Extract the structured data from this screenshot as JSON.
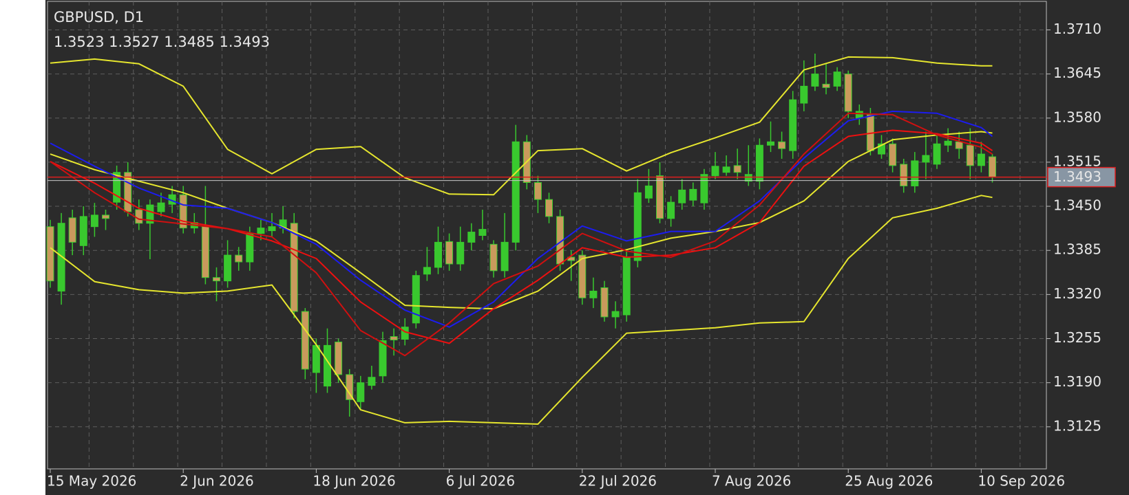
{
  "chart_data": {
    "type": "candlestick",
    "title": "GBPUSD, D1",
    "subtitle": "1.3523 1.3527 1.3485 1.3493",
    "categories": [
      "15 May 2026",
      null,
      null,
      null,
      null,
      null,
      null,
      null,
      null,
      null,
      null,
      null,
      "2 Jun 2026",
      null,
      null,
      null,
      null,
      null,
      null,
      null,
      null,
      null,
      null,
      null,
      "18 Jun 2026",
      null,
      null,
      null,
      null,
      null,
      null,
      null,
      null,
      null,
      null,
      null,
      "6 Jul 2026",
      null,
      null,
      null,
      null,
      null,
      null,
      null,
      null,
      null,
      null,
      null,
      "22 Jul 2026",
      null,
      null,
      null,
      null,
      null,
      null,
      null,
      null,
      null,
      null,
      null,
      "7 Aug 2026",
      null,
      null,
      null,
      null,
      null,
      null,
      null,
      null,
      null,
      null,
      null,
      "25 Aug 2026",
      null,
      null,
      null,
      null,
      null,
      null,
      null,
      null,
      null,
      null,
      null,
      "10 Sep 2026",
      null
    ],
    "open": [
      1.342,
      1.3325,
      1.3433,
      1.3392,
      1.342,
      1.3437,
      1.3456,
      1.35,
      1.3445,
      1.3425,
      1.3442,
      1.3453,
      1.3467,
      1.3418,
      1.342,
      1.3345,
      1.334,
      1.3378,
      1.3368,
      1.341,
      1.3414,
      1.3418,
      1.3425,
      1.3295,
      1.3205,
      1.3185,
      1.325,
      1.3202,
      1.3162,
      1.3186,
      1.32,
      1.3258,
      1.3254,
      1.3278,
      1.335,
      1.336,
      1.3398,
      1.3365,
      1.3397,
      1.3407,
      1.3394,
      1.3355,
      1.3397,
      1.3545,
      1.3485,
      1.346,
      1.3435,
      1.3375,
      1.3378,
      1.3315,
      1.333,
      1.3287,
      1.329,
      1.337,
      1.3462,
      1.3495,
      1.3432,
      1.3455,
      1.3459,
      1.3455,
      1.3495,
      1.35,
      1.351,
      1.3487,
      1.3487,
      1.354,
      1.3545,
      1.3532,
      1.3602,
      1.3627,
      1.363,
      1.3627,
      1.3645,
      1.358,
      1.3585,
      1.3527,
      1.3542,
      1.3512,
      1.348,
      1.3515,
      1.3512,
      1.354,
      1.3545,
      1.354,
      1.351,
      1.3523
    ],
    "high": [
      1.343,
      1.344,
      1.3445,
      1.345,
      1.3455,
      1.3445,
      1.351,
      1.3515,
      1.346,
      1.346,
      1.347,
      1.348,
      1.348,
      1.344,
      1.348,
      1.336,
      1.34,
      1.339,
      1.342,
      1.343,
      1.344,
      1.345,
      1.344,
      1.33,
      1.3255,
      1.327,
      1.3255,
      1.321,
      1.32,
      1.3215,
      1.3265,
      1.327,
      1.3285,
      1.3355,
      1.339,
      1.342,
      1.341,
      1.342,
      1.3425,
      1.3445,
      1.34,
      1.344,
      1.357,
      1.3555,
      1.3495,
      1.347,
      1.3445,
      1.3385,
      1.3385,
      1.3345,
      1.334,
      1.331,
      1.3385,
      1.349,
      1.3505,
      1.3515,
      1.3465,
      1.349,
      1.3485,
      1.3505,
      1.353,
      1.3525,
      1.3535,
      1.354,
      1.355,
      1.3575,
      1.356,
      1.362,
      1.3665,
      1.3675,
      1.366,
      1.3655,
      1.365,
      1.36,
      1.3595,
      1.3555,
      1.355,
      1.352,
      1.353,
      1.356,
      1.3555,
      1.3565,
      1.356,
      1.3565,
      1.3545,
      1.3527
    ],
    "low": [
      1.333,
      1.3305,
      1.3378,
      1.3378,
      1.3405,
      1.3415,
      1.3445,
      1.3435,
      1.3415,
      1.3372,
      1.3435,
      1.344,
      1.341,
      1.341,
      1.3335,
      1.331,
      1.333,
      1.3355,
      1.3355,
      1.34,
      1.3405,
      1.341,
      1.3285,
      1.3195,
      1.3175,
      1.3175,
      1.319,
      1.314,
      1.315,
      1.318,
      1.319,
      1.323,
      1.3245,
      1.327,
      1.334,
      1.335,
      1.3355,
      1.3355,
      1.3385,
      1.34,
      1.3345,
      1.3345,
      1.3385,
      1.3475,
      1.344,
      1.3425,
      1.3355,
      1.334,
      1.3305,
      1.33,
      1.328,
      1.327,
      1.328,
      1.336,
      1.3455,
      1.3425,
      1.342,
      1.3445,
      1.345,
      1.3445,
      1.349,
      1.3495,
      1.349,
      1.348,
      1.3475,
      1.353,
      1.352,
      1.352,
      1.359,
      1.362,
      1.3615,
      1.362,
      1.358,
      1.357,
      1.3525,
      1.352,
      1.35,
      1.347,
      1.347,
      1.349,
      1.3505,
      1.353,
      1.352,
      1.349,
      1.35,
      1.3485
    ],
    "close": [
      1.334,
      1.3425,
      1.3397,
      1.3435,
      1.3437,
      1.3432,
      1.35,
      1.3442,
      1.3425,
      1.3452,
      1.3455,
      1.3467,
      1.3418,
      1.3426,
      1.3345,
      1.334,
      1.3378,
      1.3368,
      1.341,
      1.3418,
      1.342,
      1.343,
      1.3295,
      1.321,
      1.3245,
      1.3245,
      1.3202,
      1.3165,
      1.319,
      1.3198,
      1.3252,
      1.3253,
      1.3272,
      1.3348,
      1.336,
      1.3397,
      1.3365,
      1.3397,
      1.3412,
      1.3416,
      1.3355,
      1.3397,
      1.3545,
      1.3485,
      1.346,
      1.3435,
      1.3365,
      1.337,
      1.3315,
      1.3325,
      1.3287,
      1.3295,
      1.3375,
      1.347,
      1.348,
      1.3432,
      1.3456,
      1.3474,
      1.3475,
      1.3497,
      1.3509,
      1.3508,
      1.35,
      1.3497,
      1.354,
      1.3545,
      1.3535,
      1.3607,
      1.3627,
      1.3645,
      1.3625,
      1.3648,
      1.359,
      1.359,
      1.3532,
      1.3542,
      1.351,
      1.348,
      1.3517,
      1.3525,
      1.3542,
      1.3546,
      1.3535,
      1.351,
      1.3527,
      1.3493
    ],
    "up_color": "#39c92e",
    "down_color": "#c99a5c",
    "wick_color": "#39c92e",
    "ylim": [
      1.3063,
      1.3752
    ],
    "yticks": [
      1.3125,
      {
        "value": 1.319,
        "label": "1.3190"
      },
      1.3255,
      {
        "value": 1.332,
        "label": "1.3320"
      },
      1.3385,
      {
        "value": 1.345,
        "label": "1.3450"
      },
      1.3515,
      {
        "value": 1.358,
        "label": "1.3580"
      },
      1.3645,
      {
        "value": 1.371,
        "label": "1.3710"
      }
    ],
    "grid": true,
    "last_price": 1.3493,
    "last_price_color": "#e01e1e",
    "indicators": [
      {
        "color": "#e6e62e",
        "x": [
          0,
          4,
          8,
          12,
          16,
          20,
          24,
          28,
          32,
          36,
          40,
          44,
          48,
          52,
          56,
          60,
          64,
          68,
          72,
          76,
          80,
          84,
          85
        ],
        "values": [
          1.3661,
          1.3667,
          1.366,
          1.3627,
          1.3534,
          1.3498,
          1.3534,
          1.3538,
          1.3492,
          1.3468,
          1.3467,
          1.3532,
          1.3535,
          1.3502,
          1.3529,
          1.3551,
          1.3574,
          1.3651,
          1.367,
          1.3669,
          1.3661,
          1.3657,
          1.3657
        ]
      },
      {
        "color": "#e6e62e",
        "x": [
          0,
          4,
          8,
          12,
          16,
          20,
          24,
          28,
          32,
          36,
          40,
          44,
          48,
          52,
          56,
          60,
          64,
          68,
          72,
          76,
          80,
          84,
          85
        ],
        "values": [
          1.3527,
          1.3504,
          1.3487,
          1.347,
          1.3447,
          1.3426,
          1.3399,
          1.3352,
          1.3304,
          1.3301,
          1.3299,
          1.3325,
          1.3373,
          1.3386,
          1.3403,
          1.3413,
          1.3426,
          1.3458,
          1.3516,
          1.3548,
          1.3555,
          1.356,
          1.3558
        ]
      },
      {
        "color": "#e6e62e",
        "x": [
          0,
          4,
          8,
          12,
          16,
          20,
          24,
          28,
          32,
          36,
          40,
          44,
          48,
          52,
          56,
          60,
          64,
          68,
          72,
          76,
          80,
          84,
          85
        ],
        "values": [
          1.3389,
          1.3339,
          1.3327,
          1.3322,
          1.3325,
          1.3334,
          1.3246,
          1.315,
          1.3131,
          1.3133,
          1.3131,
          1.3129,
          1.3198,
          1.3263,
          1.3267,
          1.3271,
          1.3278,
          1.328,
          1.3373,
          1.3433,
          1.3447,
          1.3466,
          1.3463
        ]
      },
      {
        "color": "#1c1cf0",
        "x": [
          0,
          4,
          8,
          12,
          16,
          20,
          24,
          28,
          32,
          36,
          40,
          44,
          48,
          52,
          56,
          60,
          64,
          68,
          72,
          76,
          80,
          84,
          85
        ],
        "values": [
          1.3543,
          1.3509,
          1.3477,
          1.3452,
          1.3447,
          1.3426,
          1.3394,
          1.3341,
          1.3297,
          1.3272,
          1.3309,
          1.3373,
          1.3421,
          1.3399,
          1.3413,
          1.3413,
          1.3458,
          1.3521,
          1.3576,
          1.359,
          1.3587,
          1.3566,
          1.3553
        ]
      },
      {
        "color": "#ee1010",
        "x": [
          0,
          4,
          8,
          12,
          16,
          20,
          24,
          28,
          32,
          36,
          40,
          44,
          48,
          52,
          56,
          60,
          64,
          68,
          72,
          76,
          80,
          84,
          85
        ],
        "values": [
          1.3516,
          1.3484,
          1.3447,
          1.3428,
          1.3417,
          1.3399,
          1.3373,
          1.3309,
          1.3265,
          1.3248,
          1.3299,
          1.3341,
          1.3389,
          1.3375,
          1.3378,
          1.3389,
          1.3426,
          1.3509,
          1.3553,
          1.3562,
          1.3557,
          1.3543,
          1.3532
        ]
      },
      {
        "color": "#d01010",
        "x": [
          0,
          4,
          8,
          12,
          16,
          20,
          24,
          28,
          32,
          36,
          40,
          44,
          48,
          52,
          56,
          60,
          64,
          68,
          72,
          76,
          80,
          84,
          85
        ],
        "values": [
          1.3516,
          1.347,
          1.3431,
          1.3424,
          1.3417,
          1.3405,
          1.3352,
          1.3267,
          1.323,
          1.3278,
          1.3336,
          1.3362,
          1.341,
          1.3384,
          1.3375,
          1.3399,
          1.3452,
          1.3527,
          1.3587,
          1.3585,
          1.3555,
          1.3537,
          1.3527
        ]
      }
    ]
  }
}
